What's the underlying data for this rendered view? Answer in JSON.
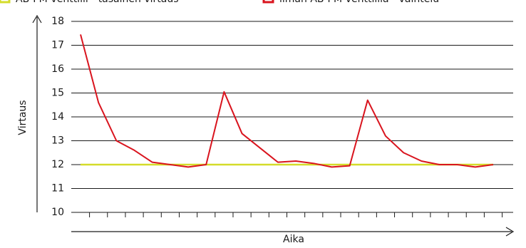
{
  "chart_data": {
    "type": "line",
    "xlabel": "Aika",
    "ylabel": "Virtaus",
    "categories": [
      null,
      null,
      null,
      null,
      null,
      null,
      null,
      null,
      null,
      null,
      null,
      null,
      null,
      null,
      null,
      null,
      null,
      null,
      null,
      null,
      null,
      null,
      null,
      null
    ],
    "series": [
      {
        "name": "AB-PM-venttiili - tasainen virtaus",
        "color": "#d4dc2a",
        "values": [
          12,
          12,
          12,
          12,
          12,
          12,
          12,
          12,
          12,
          12,
          12,
          12,
          12,
          12,
          12,
          12,
          12,
          12,
          12,
          12,
          12,
          12,
          12,
          12
        ]
      },
      {
        "name": "ilman AB-PM-venttiiliä - vaihtelu",
        "color": "#d9141e",
        "values": [
          17.45,
          14.6,
          13.0,
          12.6,
          12.1,
          12.0,
          11.9,
          12.0,
          15.05,
          13.3,
          12.7,
          12.1,
          12.15,
          12.05,
          11.9,
          11.95,
          14.7,
          13.2,
          12.5,
          12.15,
          12.0,
          12.0,
          11.9,
          12.0
        ]
      }
    ],
    "ylim": [
      10,
      18
    ],
    "yticks": [
      10,
      11,
      12,
      13,
      14,
      15,
      16,
      17,
      18
    ],
    "grid": true,
    "legend": "top"
  }
}
